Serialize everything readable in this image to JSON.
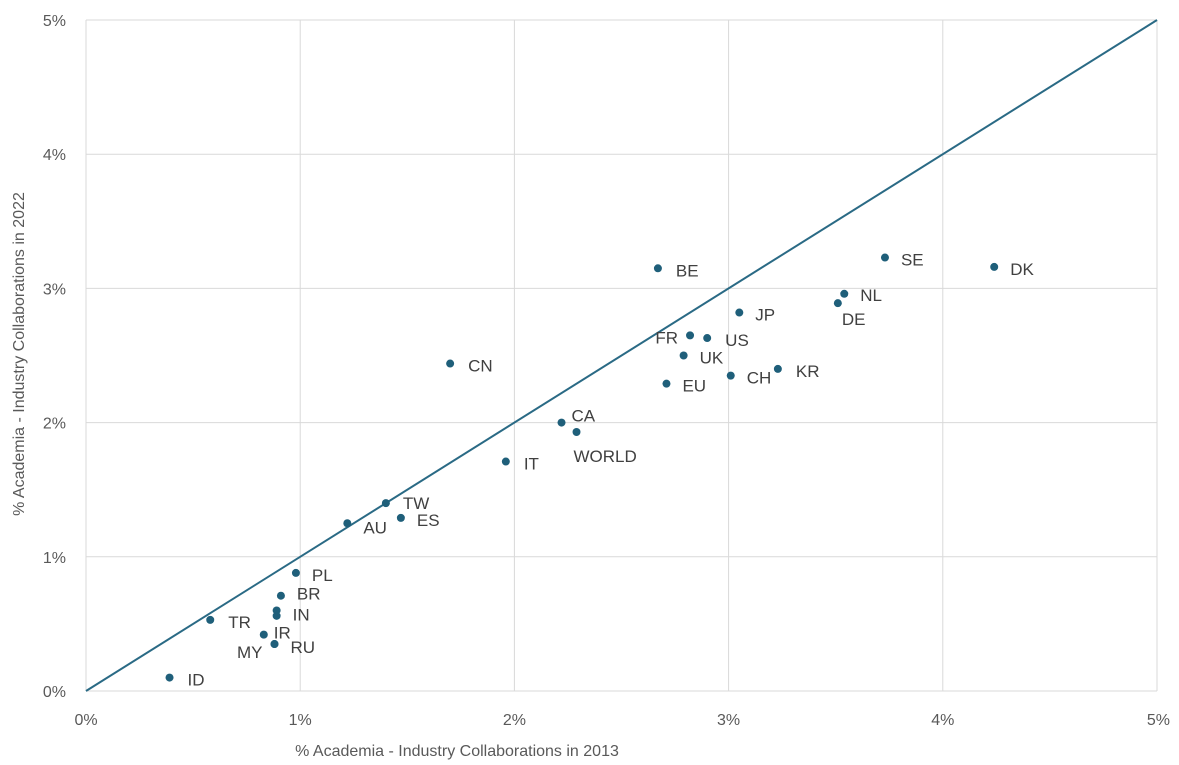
{
  "chart_data": {
    "type": "scatter",
    "xlabel": "% Academia - Industry Collaborations in 2013",
    "ylabel": "% Academia - Industry Collaborations in 2022",
    "xlim": [
      0,
      5
    ],
    "ylim": [
      0,
      5
    ],
    "x_ticks": [
      "0%",
      "1%",
      "2%",
      "3%",
      "4%",
      "5%"
    ],
    "y_ticks": [
      "0%",
      "1%",
      "2%",
      "3%",
      "4%",
      "5%"
    ],
    "grid": true,
    "reference_line": {
      "from": [
        0,
        0
      ],
      "to": [
        5,
        5
      ]
    },
    "colors": {
      "marker": "#1f5f7a",
      "line": "#2a6a85",
      "grid": "#d9d9d9"
    },
    "points": [
      {
        "label": "BE",
        "x": 2.67,
        "y": 3.15
      },
      {
        "label": "SE",
        "x": 3.73,
        "y": 3.23
      },
      {
        "label": "DK",
        "x": 4.24,
        "y": 3.16
      },
      {
        "label": "NL",
        "x": 3.54,
        "y": 2.96
      },
      {
        "label": "DE",
        "x": 3.51,
        "y": 2.89
      },
      {
        "label": "JP",
        "x": 3.05,
        "y": 2.82
      },
      {
        "label": "FR",
        "x": 2.82,
        "y": 2.65
      },
      {
        "label": "US",
        "x": 2.9,
        "y": 2.63
      },
      {
        "label": "UK",
        "x": 2.79,
        "y": 2.5
      },
      {
        "label": "CN",
        "x": 1.7,
        "y": 2.44
      },
      {
        "label": "KR",
        "x": 3.23,
        "y": 2.4
      },
      {
        "label": "CH",
        "x": 3.01,
        "y": 2.35
      },
      {
        "label": "EU",
        "x": 2.71,
        "y": 2.29
      },
      {
        "label": "CA",
        "x": 2.22,
        "y": 2.0
      },
      {
        "label": "WORLD",
        "x": 2.29,
        "y": 1.93
      },
      {
        "label": "IT",
        "x": 1.96,
        "y": 1.71
      },
      {
        "label": "TW",
        "x": 1.4,
        "y": 1.4
      },
      {
        "label": "ES",
        "x": 1.47,
        "y": 1.29
      },
      {
        "label": "AU",
        "x": 1.22,
        "y": 1.25
      },
      {
        "label": "PL",
        "x": 0.98,
        "y": 0.88
      },
      {
        "label": "BR",
        "x": 0.91,
        "y": 0.71
      },
      {
        "label": "IN",
        "x": 0.89,
        "y": 0.6
      },
      {
        "label": "",
        "x": 0.89,
        "y": 0.56
      },
      {
        "label": "TR",
        "x": 0.58,
        "y": 0.53
      },
      {
        "label": "IR",
        "x": 0.83,
        "y": 0.42
      },
      {
        "label": "RU",
        "x": 0.88,
        "y": 0.35
      },
      {
        "label": "MY",
        "x": 0.88,
        "y": 0.35
      },
      {
        "label": "ID",
        "x": 0.39,
        "y": 0.1
      }
    ]
  }
}
